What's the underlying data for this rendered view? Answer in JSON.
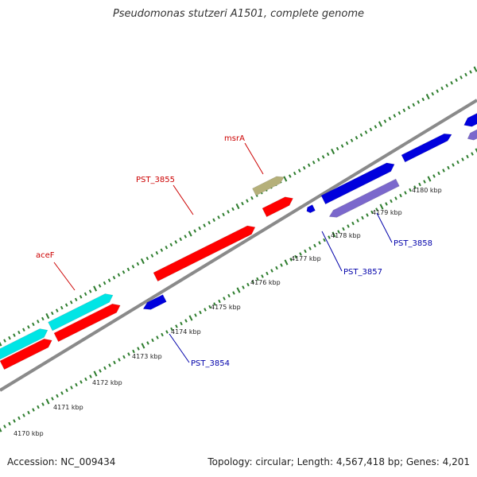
{
  "title": "Pseudomonas stutzeri A1501, complete genome",
  "footer": {
    "accession": "Accession: NC_009434",
    "summary": "Topology: circular; Length: 4,567,418 bp; Genes: 4,201"
  },
  "colors": {
    "backbone": "#8a8a8a",
    "ticks": "#2e7d2e",
    "forward_cds": "#ff0000",
    "reverse_cds": "#0000dd",
    "reverse_cds_alt": "#7b68cc",
    "rna": "#00e5e5",
    "other": "#b5b07a",
    "label_forward": "#cc0000",
    "label_reverse": "#0000aa"
  },
  "scale_labels": [
    "4170 kbp",
    "4171 kbp",
    "4172 kbp",
    "4173 kbp",
    "4174 kbp",
    "4175 kbp",
    "4176 kbp",
    "4177 kbp",
    "4178 kbp",
    "4179 kbp",
    "4180 kbp"
  ],
  "gene_labels": {
    "aceF": "aceF",
    "PST_3855": "PST_3855",
    "msrA": "msrA",
    "PST_3854": "PST_3854",
    "PST_3857": "PST_3857",
    "PST_3858": "PST_3858"
  }
}
